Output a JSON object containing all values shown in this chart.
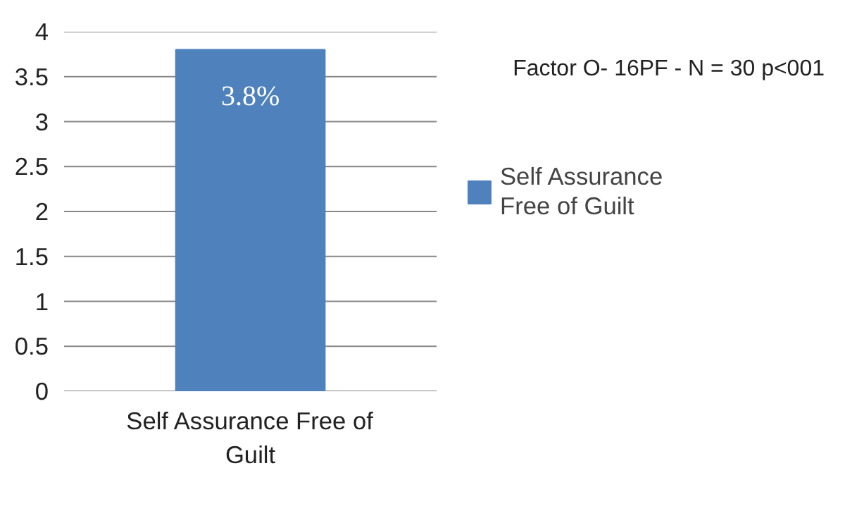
{
  "chart_data": {
    "type": "bar",
    "categories": [
      "Self Assurance Free of Guilt"
    ],
    "series": [
      {
        "name": "Self Assurance Free of Guilt",
        "color": "#4f81bd",
        "values": [
          3.8
        ],
        "value_labels": [
          "3.8%"
        ]
      }
    ],
    "ylim": [
      0,
      4
    ],
    "yticks": [
      0,
      0.5,
      1,
      1.5,
      2,
      2.5,
      3,
      3.5,
      4
    ],
    "grid": "y",
    "legend": "right",
    "annotations": [
      "Factor O- 16PF - N = 30 p<001"
    ]
  }
}
